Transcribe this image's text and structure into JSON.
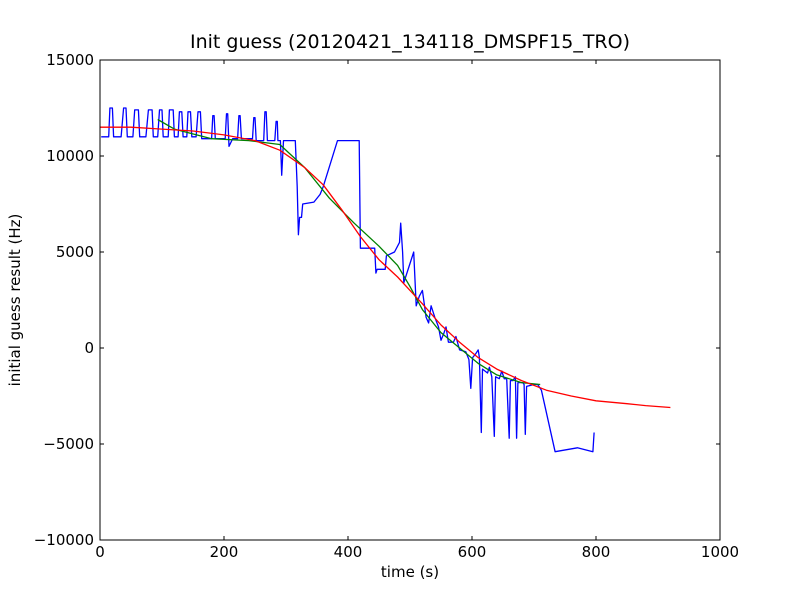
{
  "chart_data": {
    "type": "line",
    "title": "Init guess (20120421_134118_DMSPF15_TRO)",
    "xlabel": "time (s)",
    "ylabel": "initial guess result (Hz)",
    "xlim": [
      0,
      1000
    ],
    "ylim": [
      -10000,
      15000
    ],
    "xticks": [
      0,
      200,
      400,
      600,
      800,
      1000
    ],
    "yticks": [
      -10000,
      -5000,
      0,
      5000,
      10000,
      15000
    ],
    "grid": false,
    "legend": "none",
    "series": [
      {
        "color": "#0000ff",
        "points": [
          [
            2,
            11000
          ],
          [
            14,
            11000
          ],
          [
            16,
            12500
          ],
          [
            20,
            12500
          ],
          [
            22,
            11000
          ],
          [
            34,
            11000
          ],
          [
            38,
            12500
          ],
          [
            42,
            12500
          ],
          [
            44,
            11000
          ],
          [
            53,
            11000
          ],
          [
            56,
            12400
          ],
          [
            62,
            12400
          ],
          [
            64,
            11000
          ],
          [
            74,
            11000
          ],
          [
            78,
            12400
          ],
          [
            84,
            12400
          ],
          [
            86,
            11000
          ],
          [
            93,
            11000
          ],
          [
            96,
            12400
          ],
          [
            100,
            12400
          ],
          [
            102,
            11000
          ],
          [
            110,
            11000
          ],
          [
            112,
            12400
          ],
          [
            118,
            12400
          ],
          [
            120,
            11000
          ],
          [
            126,
            11000
          ],
          [
            128,
            12300
          ],
          [
            132,
            12300
          ],
          [
            134,
            11000
          ],
          [
            140,
            11000
          ],
          [
            142,
            12300
          ],
          [
            146,
            12300
          ],
          [
            148,
            11000
          ],
          [
            155,
            11000
          ],
          [
            158,
            12300
          ],
          [
            162,
            12300
          ],
          [
            164,
            10900
          ],
          [
            180,
            10900
          ],
          [
            182,
            12100
          ],
          [
            184,
            12100
          ],
          [
            186,
            10900
          ],
          [
            202,
            10900
          ],
          [
            204,
            12200
          ],
          [
            206,
            12200
          ],
          [
            208,
            10500
          ],
          [
            214,
            10900
          ],
          [
            222,
            10900
          ],
          [
            224,
            12100
          ],
          [
            226,
            12100
          ],
          [
            228,
            10900
          ],
          [
            246,
            10900
          ],
          [
            248,
            12000
          ],
          [
            250,
            12000
          ],
          [
            252,
            10800
          ],
          [
            264,
            10800
          ],
          [
            266,
            12300
          ],
          [
            268,
            12300
          ],
          [
            270,
            10800
          ],
          [
            282,
            10800
          ],
          [
            284,
            11800
          ],
          [
            286,
            11800
          ],
          [
            287,
            10800
          ],
          [
            291,
            10800
          ],
          [
            293,
            9000
          ],
          [
            296,
            10800
          ],
          [
            315,
            10800
          ],
          [
            318,
            8400
          ],
          [
            320,
            5900
          ],
          [
            322,
            6800
          ],
          [
            325,
            6800
          ],
          [
            327,
            7500
          ],
          [
            345,
            7600
          ],
          [
            355,
            8000
          ],
          [
            360,
            8400
          ],
          [
            383,
            10800
          ],
          [
            418,
            10800
          ],
          [
            420,
            5200
          ],
          [
            443,
            5200
          ],
          [
            445,
            3900
          ],
          [
            447,
            4100
          ],
          [
            460,
            4100
          ],
          [
            462,
            4800
          ],
          [
            475,
            5000
          ],
          [
            483,
            5500
          ],
          [
            485,
            6500
          ],
          [
            488,
            5000
          ],
          [
            490,
            3400
          ],
          [
            500,
            4400
          ],
          [
            506,
            5000
          ],
          [
            510,
            2200
          ],
          [
            515,
            2700
          ],
          [
            520,
            3000
          ],
          [
            526,
            1600
          ],
          [
            530,
            1300
          ],
          [
            534,
            2200
          ],
          [
            540,
            1600
          ],
          [
            546,
            1100
          ],
          [
            550,
            400
          ],
          [
            555,
            800
          ],
          [
            558,
            1100
          ],
          [
            562,
            300
          ],
          [
            570,
            300
          ],
          [
            574,
            600
          ],
          [
            580,
            -100
          ],
          [
            590,
            -200
          ],
          [
            595,
            -600
          ],
          [
            598,
            -2100
          ],
          [
            601,
            -500
          ],
          [
            606,
            -300
          ],
          [
            610,
            -100
          ],
          [
            612,
            -500
          ],
          [
            615,
            -4400
          ],
          [
            617,
            -1100
          ],
          [
            625,
            -1300
          ],
          [
            628,
            -1000
          ],
          [
            632,
            -1500
          ],
          [
            636,
            -4600
          ],
          [
            638,
            -1500
          ],
          [
            644,
            -1600
          ],
          [
            648,
            -1200
          ],
          [
            652,
            -1600
          ],
          [
            656,
            -1600
          ],
          [
            660,
            -4700
          ],
          [
            662,
            -1700
          ],
          [
            666,
            -1700
          ],
          [
            670,
            -1500
          ],
          [
            672,
            -4700
          ],
          [
            674,
            -1800
          ],
          [
            682,
            -1800
          ],
          [
            684,
            -1900
          ],
          [
            686,
            -4500
          ],
          [
            688,
            -2000
          ],
          [
            700,
            -1900
          ],
          [
            706,
            -1900
          ],
          [
            712,
            -2200
          ],
          [
            734,
            -5400
          ],
          [
            770,
            -5200
          ],
          [
            795,
            -5400
          ],
          [
            797,
            -4400
          ]
        ]
      },
      {
        "color": "#008000",
        "points": [
          [
            93,
            11900
          ],
          [
            120,
            11400
          ],
          [
            180,
            10900
          ],
          [
            240,
            10800
          ],
          [
            290,
            10600
          ],
          [
            330,
            9400
          ],
          [
            370,
            7800
          ],
          [
            410,
            6500
          ],
          [
            450,
            5300
          ],
          [
            480,
            4300
          ],
          [
            500,
            3200
          ],
          [
            520,
            2000
          ],
          [
            550,
            800
          ],
          [
            580,
            0
          ],
          [
            610,
            -800
          ],
          [
            640,
            -1400
          ],
          [
            680,
            -1800
          ],
          [
            710,
            -1900
          ]
        ]
      },
      {
        "color": "#ff0000",
        "points": [
          [
            0,
            11500
          ],
          [
            50,
            11500
          ],
          [
            100,
            11400
          ],
          [
            150,
            11300
          ],
          [
            200,
            11100
          ],
          [
            250,
            10800
          ],
          [
            290,
            10300
          ],
          [
            330,
            9400
          ],
          [
            360,
            8500
          ],
          [
            390,
            7200
          ],
          [
            420,
            5800
          ],
          [
            450,
            4600
          ],
          [
            480,
            3700
          ],
          [
            500,
            3000
          ],
          [
            520,
            2300
          ],
          [
            550,
            1200
          ],
          [
            580,
            300
          ],
          [
            610,
            -500
          ],
          [
            640,
            -1100
          ],
          [
            680,
            -1700
          ],
          [
            720,
            -2200
          ],
          [
            760,
            -2500
          ],
          [
            800,
            -2750
          ],
          [
            850,
            -2900
          ],
          [
            880,
            -3000
          ],
          [
            920,
            -3100
          ]
        ]
      }
    ]
  }
}
